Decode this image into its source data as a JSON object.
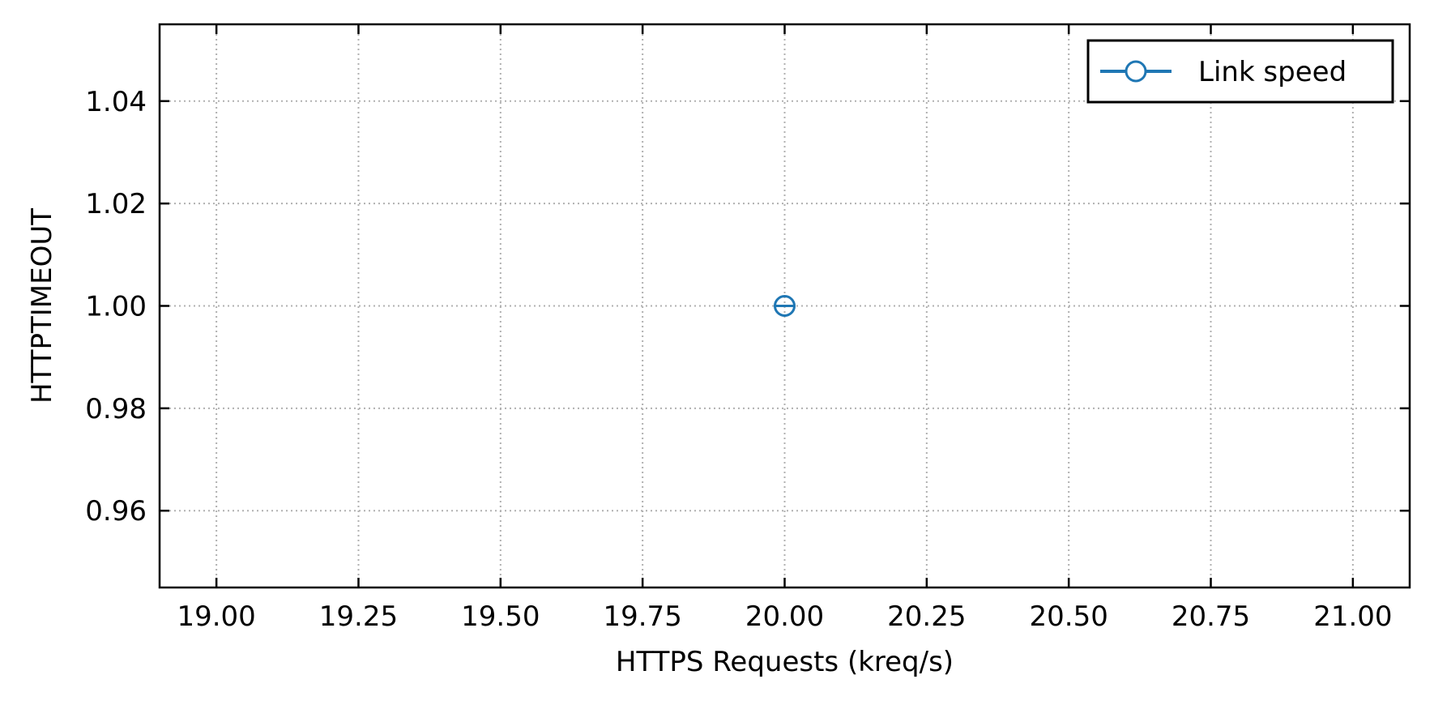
{
  "chart_data": {
    "type": "scatter",
    "title": "",
    "xlabel": "HTTPS Requests (kreq/s)",
    "ylabel": "HTTPTIMEOUT",
    "xlim": [
      18.9,
      21.1
    ],
    "ylim": [
      0.945,
      1.055
    ],
    "xticks": [
      19.0,
      19.25,
      19.5,
      19.75,
      20.0,
      20.25,
      20.5,
      20.75,
      21.0
    ],
    "xtick_labels": [
      "19.00",
      "19.25",
      "19.50",
      "19.75",
      "20.00",
      "20.25",
      "20.50",
      "20.75",
      "21.00"
    ],
    "yticks": [
      0.96,
      0.98,
      1.0,
      1.02,
      1.04
    ],
    "ytick_labels": [
      "0.96",
      "0.98",
      "1.00",
      "1.02",
      "1.04"
    ],
    "grid": true,
    "legend_position": "top-right",
    "series": [
      {
        "name": "Link speed",
        "color": "#1f77b4",
        "marker": "open-circle",
        "x": [
          20.0
        ],
        "y": [
          1.0
        ]
      }
    ]
  }
}
